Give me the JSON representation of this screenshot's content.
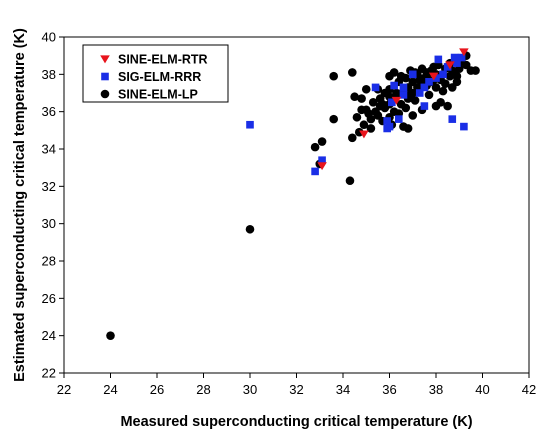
{
  "chart_data": {
    "type": "scatter",
    "xlabel": "Measured superconducting critical temperature (K)",
    "ylabel": "Estimated superconducting critical temperature (K)",
    "xlim": [
      22,
      42
    ],
    "ylim": [
      22,
      40
    ],
    "x_ticks": [
      "22",
      "24",
      "26",
      "28",
      "30",
      "32",
      "34",
      "36",
      "38",
      "40",
      "42"
    ],
    "y_ticks": [
      "22",
      "24",
      "26",
      "28",
      "30",
      "32",
      "34",
      "36",
      "38",
      "40"
    ],
    "grid": false,
    "legend_position": "top-left",
    "series": [
      {
        "name": "SINE-ELM-RTR",
        "marker": "triangle-down",
        "color": "#e8141c",
        "points": [
          [
            39.2,
            39.2
          ],
          [
            34.9,
            34.8
          ],
          [
            33.1,
            33.1
          ],
          [
            36.3,
            36.6
          ],
          [
            38.6,
            38.5
          ],
          [
            37.9,
            37.9
          ]
        ]
      },
      {
        "name": "SIG-ELM-RRR",
        "marker": "square",
        "color": "#1a2ee6",
        "points": [
          [
            30.0,
            35.3
          ],
          [
            32.8,
            32.8
          ],
          [
            33.1,
            33.4
          ],
          [
            35.4,
            37.3
          ],
          [
            36.1,
            36.5
          ],
          [
            36.0,
            35.2
          ],
          [
            35.9,
            35.1
          ],
          [
            37.5,
            36.3
          ],
          [
            38.1,
            38.8
          ],
          [
            38.8,
            38.9
          ],
          [
            39.1,
            38.9
          ],
          [
            39.2,
            35.2
          ],
          [
            38.7,
            35.6
          ],
          [
            38.5,
            38.4
          ],
          [
            37.5,
            37.3
          ],
          [
            37.0,
            38.0
          ],
          [
            36.4,
            35.6
          ],
          [
            36.6,
            36.9
          ],
          [
            36.6,
            37.3
          ],
          [
            35.9,
            35.5
          ],
          [
            38.3,
            38.0
          ],
          [
            37.7,
            37.6
          ],
          [
            36.2,
            37.4
          ],
          [
            38.0,
            37.8
          ],
          [
            38.9,
            38.6
          ],
          [
            37.3,
            37.0
          ]
        ]
      },
      {
        "name": "SINE-ELM-LP",
        "marker": "circle",
        "color": "#000000",
        "points": [
          [
            24.0,
            24.0
          ],
          [
            30.0,
            29.7
          ],
          [
            34.3,
            32.3
          ],
          [
            33.0,
            33.2
          ],
          [
            32.8,
            34.1
          ],
          [
            33.1,
            34.4
          ],
          [
            33.6,
            35.6
          ],
          [
            33.6,
            37.9
          ],
          [
            34.4,
            38.1
          ],
          [
            34.5,
            36.8
          ],
          [
            34.8,
            36.7
          ],
          [
            35.0,
            37.2
          ],
          [
            34.4,
            34.6
          ],
          [
            34.7,
            34.9
          ],
          [
            35.2,
            35.6
          ],
          [
            35.5,
            35.8
          ],
          [
            35.0,
            36.1
          ],
          [
            35.6,
            36.3
          ],
          [
            35.8,
            37.0
          ],
          [
            36.0,
            36.8
          ],
          [
            35.3,
            36.5
          ],
          [
            35.7,
            35.5
          ],
          [
            36.0,
            35.7
          ],
          [
            36.4,
            35.9
          ],
          [
            36.6,
            35.2
          ],
          [
            36.8,
            35.1
          ],
          [
            36.2,
            36.0
          ],
          [
            36.5,
            36.4
          ],
          [
            36.8,
            36.7
          ],
          [
            37.0,
            37.0
          ],
          [
            37.2,
            37.3
          ],
          [
            37.4,
            37.5
          ],
          [
            36.7,
            37.8
          ],
          [
            36.4,
            37.6
          ],
          [
            36.2,
            38.1
          ],
          [
            36.0,
            37.2
          ],
          [
            36.3,
            37.0
          ],
          [
            36.9,
            38.2
          ],
          [
            37.2,
            38.0
          ],
          [
            37.6,
            37.9
          ],
          [
            37.8,
            38.2
          ],
          [
            38.0,
            38.0
          ],
          [
            38.2,
            37.7
          ],
          [
            38.4,
            37.5
          ],
          [
            38.6,
            37.9
          ],
          [
            38.8,
            38.1
          ],
          [
            39.0,
            38.3
          ],
          [
            39.3,
            38.5
          ],
          [
            39.5,
            38.2
          ],
          [
            39.7,
            38.2
          ],
          [
            38.9,
            37.6
          ],
          [
            38.7,
            37.3
          ],
          [
            38.3,
            37.1
          ],
          [
            38.0,
            37.3
          ],
          [
            37.8,
            37.6
          ],
          [
            37.6,
            37.4
          ],
          [
            37.5,
            37.8
          ],
          [
            37.3,
            37.7
          ],
          [
            37.0,
            37.6
          ],
          [
            36.8,
            37.3
          ],
          [
            36.6,
            37.1
          ],
          [
            35.8,
            36.2
          ],
          [
            35.5,
            37.2
          ],
          [
            35.1,
            35.9
          ],
          [
            34.9,
            35.3
          ],
          [
            36.0,
            36.4
          ],
          [
            37.1,
            36.6
          ],
          [
            37.4,
            36.1
          ],
          [
            38.0,
            36.3
          ],
          [
            38.2,
            36.5
          ],
          [
            38.5,
            36.3
          ],
          [
            38.9,
            37.9
          ],
          [
            39.1,
            38.7
          ],
          [
            38.6,
            38.6
          ],
          [
            38.4,
            38.3
          ],
          [
            38.1,
            38.5
          ],
          [
            37.9,
            38.4
          ],
          [
            37.7,
            38.1
          ],
          [
            37.4,
            38.3
          ],
          [
            37.1,
            38.1
          ],
          [
            36.7,
            36.2
          ],
          [
            36.1,
            35.3
          ],
          [
            35.4,
            36.0
          ],
          [
            34.8,
            36.1
          ],
          [
            36.3,
            36.9
          ],
          [
            36.5,
            37.9
          ],
          [
            37.6,
            38.1
          ],
          [
            38.7,
            38.2
          ],
          [
            39.3,
            39.0
          ],
          [
            38.2,
            37.9
          ],
          [
            37.9,
            37.7
          ],
          [
            37.3,
            37.2
          ],
          [
            36.9,
            36.9
          ],
          [
            35.6,
            36.7
          ],
          [
            35.2,
            35.1
          ],
          [
            34.6,
            35.7
          ],
          [
            36.0,
            37.9
          ],
          [
            35.7,
            36.4
          ],
          [
            37.0,
            35.8
          ],
          [
            37.7,
            36.9
          ]
        ]
      }
    ]
  }
}
